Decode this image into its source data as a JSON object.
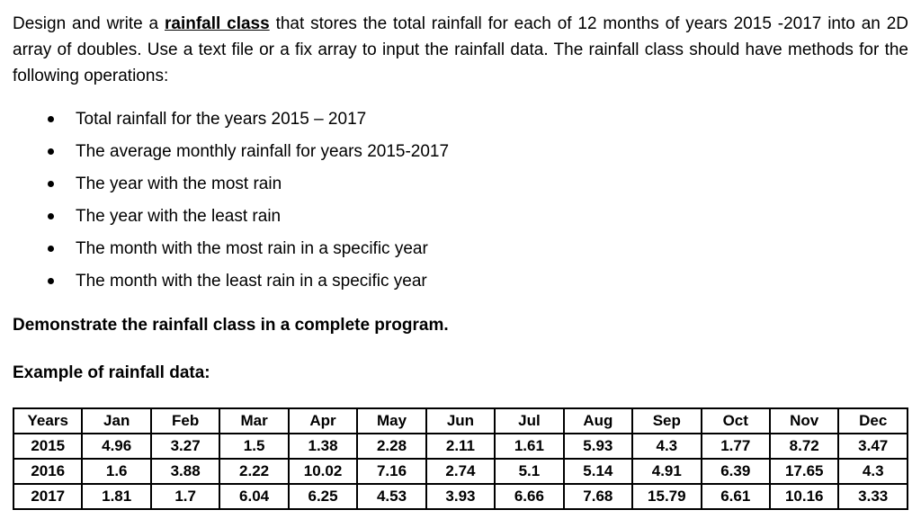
{
  "intro": {
    "before": "Design and write a ",
    "term": "rainfall class",
    "after": " that stores the total rainfall for each of 12 months of years 2015 -2017 into an 2D array of doubles. Use a text file or a fix array to input the rainfall data. The rainfall class should have methods for the following operations:"
  },
  "bullets": [
    "Total rainfall for the years 2015 – 2017",
    "The average monthly rainfall for years 2015-2017",
    "The year with the most rain",
    "The year with the least rain",
    "The month with the most rain in a specific year",
    "The month with the least rain in a specific year"
  ],
  "demonstrate_text": "Demonstrate the rainfall class in a complete program.",
  "example_heading": "Example of rainfall data:",
  "table": {
    "headers": [
      "Years",
      "Jan",
      "Feb",
      "Mar",
      "Apr",
      "May",
      "Jun",
      "Jul",
      "Aug",
      "Sep",
      "Oct",
      "Nov",
      "Dec"
    ],
    "rows": [
      [
        "2015",
        "4.96",
        "3.27",
        "1.5",
        "1.38",
        "2.28",
        "2.11",
        "1.61",
        "5.93",
        "4.3",
        "1.77",
        "8.72",
        "3.47"
      ],
      [
        "2016",
        "1.6",
        "3.88",
        "2.22",
        "10.02",
        "7.16",
        "2.74",
        "5.1",
        "5.14",
        "4.91",
        "6.39",
        "17.65",
        "4.3"
      ],
      [
        "2017",
        "1.81",
        "1.7",
        "6.04",
        "6.25",
        "4.53",
        "3.93",
        "6.66",
        "7.68",
        "15.79",
        "6.61",
        "10.16",
        "3.33"
      ]
    ]
  },
  "colors": {
    "text": "#000000",
    "background": "#ffffff",
    "table_border": "#000000"
  }
}
